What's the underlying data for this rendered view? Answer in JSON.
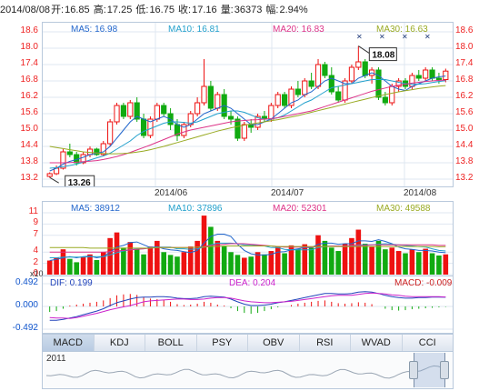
{
  "header": {
    "date": "2014/08/08",
    "open_label": "开:",
    "open": "16.85",
    "high_label": "高:",
    "high": "17.25",
    "low_label": "低:",
    "low": "16.75",
    "close_label": "收:",
    "close": "17.16",
    "volume_label": "量:",
    "volume": "36373",
    "change_label": "幅:",
    "change": "2.94%"
  },
  "price_ma": {
    "ma5": "MA5: 16.98",
    "ma10": "MA10: 16.81",
    "ma20": "MA20: 16.83",
    "ma30": "MA30: 16.63"
  },
  "volume_ma": {
    "ma5": "MA5: 38912",
    "ma10": "MA10: 37896",
    "ma20": "MA20: 52301",
    "ma30": "MA30: 49588"
  },
  "macd_labels": {
    "dif": "DIF: 0.199",
    "dea": "DEA: 0.204",
    "macd": "MACD: -0.009"
  },
  "markers": {
    "high_marker": "18.08",
    "low_marker": "13.26",
    "x_marks": [
      "✕",
      "✕",
      "✕",
      "✕"
    ]
  },
  "axes": {
    "price_ticks": [
      "18.6",
      "18.0",
      "17.4",
      "16.8",
      "16.2",
      "15.6",
      "15.0",
      "14.4",
      "13.8",
      "13.2"
    ],
    "volume_ticks": [
      "11",
      "9",
      "7",
      "4",
      "2",
      "0"
    ],
    "volume_unit": "x10",
    "macd_ticks": [
      "0.492",
      "0.000",
      "-0.492"
    ],
    "x_ticks": [
      "2014/06",
      "2014/07",
      "2014/08"
    ]
  },
  "tabs": [
    "MACD",
    "KDJ",
    "BOLL",
    "PSY",
    "OBV",
    "RSI",
    "WVAD",
    "CCI"
  ],
  "active_tab": "MACD",
  "navigator": {
    "year": "2011"
  },
  "colors": {
    "up": "#ee1111",
    "down": "#11aa11",
    "ma5": "#2266cc",
    "ma10": "#22a0cc",
    "ma20": "#dd3388",
    "ma30": "#99aa22",
    "dif": "#2244bb",
    "dea": "#cc22cc"
  },
  "chart_data": [
    {
      "type": "candlestick",
      "name": "price",
      "ylim": [
        13.2,
        18.6
      ],
      "ohlc": [
        [
          13.3,
          13.45,
          13.26,
          13.4
        ],
        [
          13.4,
          13.7,
          13.35,
          13.6
        ],
        [
          13.6,
          14.3,
          13.55,
          14.2
        ],
        [
          14.2,
          14.5,
          14.0,
          14.1
        ],
        [
          14.1,
          14.2,
          13.7,
          13.8
        ],
        [
          13.8,
          14.2,
          13.75,
          14.1
        ],
        [
          14.1,
          14.4,
          14.0,
          14.3
        ],
        [
          14.3,
          14.35,
          14.05,
          14.1
        ],
        [
          14.1,
          14.6,
          14.05,
          14.5
        ],
        [
          14.5,
          15.4,
          14.4,
          15.3
        ],
        [
          15.3,
          16.0,
          15.2,
          15.9
        ],
        [
          15.9,
          16.0,
          15.4,
          15.5
        ],
        [
          15.5,
          16.1,
          15.4,
          16.0
        ],
        [
          16.0,
          16.2,
          15.3,
          15.4
        ],
        [
          15.4,
          15.6,
          14.7,
          14.8
        ],
        [
          14.8,
          15.5,
          14.7,
          15.4
        ],
        [
          15.4,
          16.0,
          15.3,
          15.9
        ],
        [
          15.9,
          16.0,
          15.5,
          15.6
        ],
        [
          15.6,
          15.8,
          15.0,
          15.2
        ],
        [
          15.2,
          15.4,
          14.6,
          14.8
        ],
        [
          14.8,
          15.3,
          14.7,
          15.2
        ],
        [
          15.2,
          15.7,
          15.1,
          15.6
        ],
        [
          15.6,
          16.2,
          15.5,
          16.0
        ],
        [
          16.0,
          17.6,
          15.9,
          16.6
        ],
        [
          16.6,
          16.8,
          15.7,
          15.8
        ],
        [
          15.8,
          16.4,
          15.7,
          16.3
        ],
        [
          16.3,
          16.5,
          15.4,
          15.5
        ],
        [
          15.5,
          15.7,
          15.2,
          15.4
        ],
        [
          15.4,
          15.5,
          14.6,
          14.7
        ],
        [
          14.7,
          15.3,
          14.6,
          15.2
        ],
        [
          15.2,
          15.4,
          14.9,
          15.1
        ],
        [
          15.1,
          15.6,
          15.0,
          15.5
        ],
        [
          15.5,
          15.7,
          15.3,
          15.4
        ],
        [
          15.4,
          16.0,
          15.3,
          15.9
        ],
        [
          15.9,
          16.4,
          15.8,
          16.3
        ],
        [
          16.3,
          16.4,
          15.8,
          15.9
        ],
        [
          15.9,
          16.6,
          15.8,
          16.5
        ],
        [
          16.5,
          16.8,
          16.2,
          16.3
        ],
        [
          16.3,
          16.9,
          16.2,
          16.8
        ],
        [
          16.8,
          17.1,
          16.5,
          16.6
        ],
        [
          16.6,
          17.6,
          16.5,
          17.4
        ],
        [
          17.4,
          17.5,
          16.9,
          17.0
        ],
        [
          17.0,
          17.3,
          16.3,
          16.4
        ],
        [
          16.4,
          16.6,
          16.0,
          16.1
        ],
        [
          16.1,
          16.9,
          16.0,
          16.8
        ],
        [
          16.8,
          17.4,
          16.7,
          17.3
        ],
        [
          17.3,
          18.08,
          17.2,
          17.5
        ],
        [
          17.5,
          17.6,
          16.9,
          17.0
        ],
        [
          17.0,
          17.3,
          16.7,
          17.2
        ],
        [
          17.2,
          17.3,
          16.1,
          16.2
        ],
        [
          16.2,
          16.4,
          15.9,
          16.0
        ],
        [
          16.0,
          16.7,
          15.9,
          16.6
        ],
        [
          16.6,
          16.9,
          16.4,
          16.8
        ],
        [
          16.8,
          16.9,
          16.5,
          16.6
        ],
        [
          16.6,
          17.1,
          16.5,
          17.0
        ],
        [
          17.0,
          17.2,
          16.8,
          16.9
        ],
        [
          16.9,
          17.3,
          16.8,
          17.2
        ],
        [
          17.2,
          17.3,
          16.8,
          16.9
        ],
        [
          16.9,
          17.1,
          16.7,
          16.85
        ],
        [
          16.85,
          17.25,
          16.75,
          17.16
        ]
      ],
      "ma5": [
        13.5,
        13.6,
        13.75,
        13.85,
        13.92,
        14.0,
        14.1,
        14.15,
        14.2,
        14.4,
        14.7,
        15.0,
        15.3,
        15.5,
        15.4,
        15.3,
        15.4,
        15.5,
        15.4,
        15.2,
        15.1,
        15.2,
        15.4,
        15.6,
        15.7,
        15.8,
        15.9,
        15.8,
        15.6,
        15.4,
        15.2,
        15.2,
        15.3,
        15.4,
        15.6,
        15.8,
        16.0,
        16.1,
        16.3,
        16.4,
        16.6,
        16.8,
        16.9,
        16.8,
        16.7,
        16.7,
        16.9,
        17.0,
        17.1,
        17.0,
        16.8,
        16.6,
        16.5,
        16.45,
        16.6,
        16.7,
        16.8,
        16.9,
        16.95,
        16.98
      ],
      "ma10": [
        13.6,
        13.62,
        13.66,
        13.7,
        13.75,
        13.82,
        13.9,
        13.98,
        14.05,
        14.15,
        14.3,
        14.45,
        14.6,
        14.8,
        14.95,
        15.05,
        15.15,
        15.25,
        15.3,
        15.3,
        15.28,
        15.25,
        15.3,
        15.4,
        15.5,
        15.6,
        15.65,
        15.7,
        15.7,
        15.65,
        15.55,
        15.45,
        15.4,
        15.4,
        15.45,
        15.55,
        15.7,
        15.85,
        16.0,
        16.1,
        16.25,
        16.4,
        16.55,
        16.6,
        16.65,
        16.7,
        16.75,
        16.8,
        16.85,
        16.85,
        16.85,
        16.8,
        16.75,
        16.7,
        16.68,
        16.68,
        16.7,
        16.74,
        16.78,
        16.81
      ],
      "ma20": [
        13.8,
        13.8,
        13.8,
        13.81,
        13.82,
        13.84,
        13.86,
        13.88,
        13.92,
        13.97,
        14.03,
        14.1,
        14.18,
        14.27,
        14.36,
        14.45,
        14.55,
        14.65,
        14.75,
        14.85,
        14.93,
        15.0,
        15.05,
        15.1,
        15.15,
        15.2,
        15.25,
        15.3,
        15.33,
        15.35,
        15.37,
        15.38,
        15.4,
        15.42,
        15.45,
        15.5,
        15.55,
        15.6,
        15.65,
        15.7,
        15.78,
        15.86,
        15.94,
        16.02,
        16.1,
        16.18,
        16.26,
        16.34,
        16.42,
        16.48,
        16.54,
        16.6,
        16.64,
        16.68,
        16.72,
        16.75,
        16.78,
        16.8,
        16.82,
        16.83
      ],
      "ma30": [
        14.4,
        14.36,
        14.32,
        14.28,
        14.24,
        14.2,
        14.18,
        14.16,
        14.14,
        14.13,
        14.13,
        14.14,
        14.16,
        14.19,
        14.23,
        14.28,
        14.34,
        14.4,
        14.47,
        14.54,
        14.61,
        14.68,
        14.75,
        14.82,
        14.89,
        14.96,
        15.02,
        15.08,
        15.13,
        15.18,
        15.22,
        15.26,
        15.3,
        15.34,
        15.38,
        15.43,
        15.48,
        15.53,
        15.59,
        15.65,
        15.71,
        15.77,
        15.83,
        15.89,
        15.95,
        16.01,
        16.07,
        16.13,
        16.19,
        16.25,
        16.3,
        16.35,
        16.4,
        16.44,
        16.48,
        16.52,
        16.55,
        16.58,
        16.61,
        16.63
      ]
    },
    {
      "type": "bar",
      "name": "volume",
      "unit": "x10",
      "ylim": [
        0,
        11
      ],
      "values": [
        2.5,
        3.0,
        4.5,
        2.8,
        2.2,
        3.2,
        3.6,
        2.6,
        4.0,
        6.5,
        7.5,
        4.8,
        5.8,
        4.6,
        3.6,
        5.0,
        6.0,
        4.0,
        3.5,
        3.2,
        4.0,
        5.0,
        6.0,
        10.5,
        8.5,
        6.0,
        5.0,
        4.0,
        3.5,
        3.0,
        3.2,
        4.0,
        3.6,
        4.2,
        5.0,
        3.8,
        5.2,
        4.6,
        5.4,
        4.8,
        7.0,
        6.0,
        4.8,
        4.2,
        5.5,
        6.5,
        8.0,
        5.5,
        5.0,
        6.0,
        4.5,
        4.8,
        4.2,
        3.8,
        4.5,
        4.0,
        4.6,
        3.8,
        3.4,
        3.6
      ],
      "ma5": [
        2.5,
        2.7,
        3.0,
        3.2,
        3.0,
        3.2,
        3.3,
        3.0,
        3.2,
        4.0,
        4.9,
        5.2,
        5.7,
        5.8,
        5.3,
        4.8,
        5.0,
        4.6,
        4.4,
        4.3,
        4.1,
        3.9,
        4.3,
        5.6,
        6.8,
        7.2,
        7.2,
        6.8,
        5.4,
        4.3,
        3.7,
        3.5,
        3.5,
        3.6,
        4.0,
        4.1,
        4.4,
        4.6,
        4.8,
        4.8,
        5.4,
        5.6,
        5.6,
        5.4,
        5.5,
        5.5,
        6.0,
        6.0,
        5.9,
        6.2,
        5.9,
        5.5,
        4.9,
        4.6,
        4.5,
        4.3,
        4.3,
        4.2,
        4.0,
        3.9
      ],
      "ma10": [
        3.0,
        3.0,
        3.1,
        3.1,
        3.1,
        3.1,
        3.2,
        3.2,
        3.2,
        3.5,
        3.9,
        4.2,
        4.4,
        4.6,
        4.6,
        4.8,
        4.9,
        4.9,
        4.9,
        4.6,
        4.6,
        4.5,
        4.6,
        4.9,
        5.3,
        5.6,
        5.6,
        5.6,
        5.5,
        5.3,
        5.3,
        5.2,
        5.1,
        4.8,
        4.8,
        4.5,
        4.4,
        4.4,
        4.4,
        4.4,
        4.8,
        5.0,
        5.1,
        5.1,
        5.1,
        5.1,
        5.3,
        5.3,
        5.3,
        5.4,
        5.5,
        5.4,
        5.3,
        5.2,
        5.1,
        5.0,
        4.9,
        4.6,
        4.3,
        4.2
      ],
      "ma20": [
        4.0,
        4.0,
        4.0,
        4.0,
        4.0,
        4.0,
        4.0,
        4.0,
        4.0,
        4.1,
        4.2,
        4.3,
        4.4,
        4.5,
        4.6,
        4.7,
        4.8,
        4.8,
        4.8,
        4.8,
        4.8,
        4.8,
        4.9,
        5.0,
        5.2,
        5.3,
        5.4,
        5.5,
        5.5,
        5.5,
        5.4,
        5.3,
        5.2,
        5.1,
        5.0,
        4.9,
        4.9,
        4.9,
        4.9,
        4.9,
        5.0,
        5.0,
        5.1,
        5.1,
        5.1,
        5.2,
        5.2,
        5.2,
        5.3,
        5.3,
        5.3,
        5.3,
        5.3,
        5.3,
        5.3,
        5.3,
        5.3,
        5.3,
        5.2,
        5.2
      ],
      "ma30": [
        4.8,
        4.8,
        4.8,
        4.8,
        4.8,
        4.8,
        4.7,
        4.7,
        4.7,
        4.7,
        4.7,
        4.7,
        4.7,
        4.7,
        4.7,
        4.7,
        4.8,
        4.8,
        4.8,
        4.8,
        4.8,
        4.8,
        4.9,
        4.9,
        5.0,
        5.0,
        5.1,
        5.1,
        5.1,
        5.1,
        5.1,
        5.1,
        5.1,
        5.1,
        5.0,
        5.0,
        5.0,
        5.0,
        5.0,
        5.0,
        5.0,
        5.0,
        5.0,
        5.0,
        5.0,
        5.0,
        5.0,
        5.0,
        5.0,
        5.0,
        5.0,
        5.0,
        5.0,
        5.0,
        5.0,
        5.0,
        5.0,
        5.0,
        4.95,
        4.96
      ]
    },
    {
      "type": "macd",
      "name": "macd",
      "ylim": [
        -0.492,
        0.492
      ],
      "hist": [
        -0.12,
        -0.1,
        -0.05,
        0.02,
        0.04,
        0.06,
        0.08,
        0.1,
        0.13,
        0.18,
        0.24,
        0.26,
        0.27,
        0.25,
        0.2,
        0.17,
        0.16,
        0.14,
        0.1,
        0.05,
        0.03,
        0.04,
        0.06,
        0.1,
        0.08,
        0.04,
        0.02,
        -0.04,
        -0.1,
        -0.14,
        -0.16,
        -0.14,
        -0.1,
        -0.06,
        -0.02,
        0.0,
        0.03,
        0.06,
        0.08,
        0.1,
        0.12,
        0.13,
        0.1,
        0.07,
        0.06,
        0.07,
        0.09,
        0.08,
        0.05,
        0.0,
        -0.05,
        -0.08,
        -0.09,
        -0.08,
        -0.06,
        -0.05,
        -0.04,
        -0.03,
        -0.02,
        -0.01
      ],
      "dif": [
        -0.3,
        -0.3,
        -0.28,
        -0.25,
        -0.22,
        -0.18,
        -0.14,
        -0.1,
        -0.05,
        0.02,
        0.08,
        0.12,
        0.16,
        0.19,
        0.2,
        0.2,
        0.21,
        0.21,
        0.2,
        0.18,
        0.17,
        0.17,
        0.18,
        0.21,
        0.22,
        0.21,
        0.2,
        0.16,
        0.1,
        0.05,
        0.02,
        0.02,
        0.03,
        0.05,
        0.08,
        0.1,
        0.13,
        0.16,
        0.19,
        0.22,
        0.25,
        0.28,
        0.28,
        0.27,
        0.27,
        0.28,
        0.31,
        0.32,
        0.31,
        0.28,
        0.24,
        0.21,
        0.19,
        0.18,
        0.18,
        0.19,
        0.19,
        0.2,
        0.2,
        0.199
      ],
      "dea": [
        -0.24,
        -0.25,
        -0.25,
        -0.26,
        -0.24,
        -0.21,
        -0.18,
        -0.15,
        -0.11,
        -0.07,
        -0.04,
        -0.01,
        0.02,
        0.06,
        0.1,
        0.12,
        0.13,
        0.14,
        0.15,
        0.16,
        0.16,
        0.15,
        0.15,
        0.16,
        0.18,
        0.19,
        0.19,
        0.18,
        0.15,
        0.12,
        0.1,
        0.09,
        0.08,
        0.08,
        0.09,
        0.1,
        0.11,
        0.13,
        0.15,
        0.17,
        0.19,
        0.21,
        0.23,
        0.24,
        0.24,
        0.24,
        0.26,
        0.28,
        0.29,
        0.28,
        0.27,
        0.25,
        0.24,
        0.22,
        0.21,
        0.21,
        0.21,
        0.21,
        0.21,
        0.204
      ]
    }
  ]
}
